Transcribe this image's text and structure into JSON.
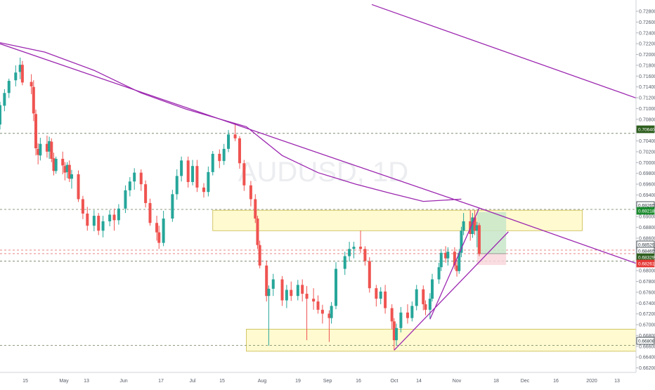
{
  "symbol_watermark": "AUDUSD, 1D",
  "colors": {
    "background": "#ffffff",
    "up_candle": "#26a69a",
    "down_candle": "#ef5350",
    "trendline": "#9c27b0",
    "zone_fill": "#fff9c4",
    "zone_stroke": "#c9b94a",
    "level_line": "#6b7d5a",
    "profit_fill": "#c8e6c9",
    "loss_fill": "#f8d7da",
    "price_tag_green": "#1b8a2e",
    "price_tag_dark_green": "#2e5e1e",
    "price_tag_red": "#e53935",
    "price_tag_bordered": "#263238"
  },
  "x_axis_labels": [
    "15",
    "May",
    "13",
    "Jun",
    "17",
    "Jul",
    "15",
    "Aug",
    "19",
    "Sep",
    "16",
    "Oct",
    "14",
    "Nov",
    "18",
    "Dec",
    "16",
    "2020",
    "13"
  ],
  "y_axis_labels": [
    "0.72800",
    "0.72600",
    "0.72400",
    "0.72200",
    "0.72000",
    "0.71800",
    "0.71600",
    "0.71400",
    "0.71200",
    "0.71000",
    "0.70800",
    "0.70600",
    "0.70400",
    "0.70200",
    "0.70000",
    "0.69800",
    "0.69600",
    "0.69400",
    "0.69200",
    "0.69000",
    "0.68800",
    "0.68600",
    "0.68400",
    "0.68200",
    "0.68000",
    "0.67800",
    "0.67600",
    "0.67400",
    "0.67200",
    "0.67000",
    "0.66800",
    "0.66600",
    "0.66400",
    "0.66200"
  ],
  "price_tags": [
    {
      "label": "0.70640",
      "style": "dark-green"
    },
    {
      "label": "0.69265",
      "style": "bordered"
    },
    {
      "label": "0.69218",
      "style": "green"
    },
    {
      "label": "0.68529",
      "style": "bordered"
    },
    {
      "label": "0.68465",
      "style": "bordered"
    },
    {
      "label": "0.68329",
      "style": "dark-green"
    },
    {
      "label": "0.68261",
      "style": "red"
    },
    {
      "label": "0.66808",
      "style": "bordered"
    }
  ],
  "chart_data": {
    "type": "candlestick",
    "symbol": "AUDUSD",
    "timeframe": "1D",
    "ylim": [
      0.6619,
      0.7295
    ],
    "x_range_days": [
      "2019-04-08",
      "2020-01-17"
    ],
    "support_resistance_levels": [
      0.7064,
      0.69265,
      0.68529,
      0.68465,
      0.68329,
      0.66808
    ],
    "zones": [
      {
        "name": "resistance zone",
        "from": "2019-07-12",
        "to": "2019-12-24",
        "top": 0.6925,
        "bottom": 0.6888
      },
      {
        "name": "support zone",
        "from": "2019-07-27",
        "to": "2020-01-17",
        "top": 0.671,
        "bottom": 0.667
      }
    ],
    "trade_position": {
      "from": "2019-11-07",
      "to": "2019-11-20",
      "entry": 0.68465,
      "target": 0.69218,
      "stop": 0.68261
    },
    "trendlines": [
      {
        "name": "long-term downtrend",
        "from": [
          "2019-04-08",
          0.7226
        ],
        "to": [
          "2019-11-08",
          0.6929
        ]
      },
      {
        "name": "extended downtrend",
        "from": [
          "2019-11-08",
          0.6929
        ],
        "to": [
          "2020-01-17",
          0.6829
        ]
      },
      {
        "name": "ascending trendline",
        "from": [
          "2019-10-01",
          0.6672
        ],
        "to": [
          "2019-11-21",
          0.6886
        ]
      },
      {
        "name": "steep trendline",
        "from": [
          "2019-10-17",
          0.6728
        ],
        "to": [
          "2019-11-08",
          0.6929
        ]
      },
      {
        "name": "upper trendline",
        "from": [
          "2019-09-21",
          0.7297
        ],
        "to": [
          "2020-01-17",
          0.7128
        ]
      }
    ],
    "moving_average": [
      [
        "2019-04-08",
        0.7228
      ],
      [
        "2019-04-28",
        0.7211
      ],
      [
        "2019-05-20",
        0.7178
      ],
      [
        "2019-06-10",
        0.7137
      ],
      [
        "2019-06-30",
        0.7108
      ],
      [
        "2019-07-10",
        0.7096
      ],
      [
        "2019-07-27",
        0.7076
      ],
      [
        "2019-08-12",
        0.7024
      ],
      [
        "2019-08-28",
        0.6993
      ],
      [
        "2019-09-14",
        0.6972
      ],
      [
        "2019-09-29",
        0.6956
      ],
      [
        "2019-10-14",
        0.6941
      ],
      [
        "2019-10-31",
        0.6945
      ]
    ],
    "candles": [
      [
        "2019-04-08",
        0.708,
        0.7121,
        0.7071,
        0.7115
      ],
      [
        "2019-04-10",
        0.7114,
        0.7144,
        0.7104,
        0.7137
      ],
      [
        "2019-04-12",
        0.7137,
        0.7163,
        0.7128,
        0.7159
      ],
      [
        "2019-04-15",
        0.716,
        0.7187,
        0.7149,
        0.7174
      ],
      [
        "2019-04-17",
        0.7175,
        0.7201,
        0.7162,
        0.7188
      ],
      [
        "2019-04-18",
        0.7188,
        0.7195,
        0.7151,
        0.7156
      ],
      [
        "2019-04-22",
        0.7157,
        0.7171,
        0.7135,
        0.7149
      ],
      [
        "2019-04-23",
        0.7148,
        0.716,
        0.7086,
        0.71
      ],
      [
        "2019-04-24",
        0.7099,
        0.7107,
        0.7024,
        0.7037
      ],
      [
        "2019-04-25",
        0.7036,
        0.7046,
        0.7008,
        0.7025
      ],
      [
        "2019-04-26",
        0.7024,
        0.7056,
        0.7015,
        0.7045
      ],
      [
        "2019-04-29",
        0.7045,
        0.706,
        0.702,
        0.7031
      ],
      [
        "2019-04-30",
        0.7031,
        0.7058,
        0.7018,
        0.705
      ],
      [
        "2019-05-01",
        0.7049,
        0.7055,
        0.7012,
        0.7018
      ],
      [
        "2019-05-02",
        0.7019,
        0.7029,
        0.6988,
        0.6996
      ],
      [
        "2019-05-03",
        0.6996,
        0.7022,
        0.6991,
        0.7018
      ],
      [
        "2019-05-06",
        0.7018,
        0.7031,
        0.699,
        0.7006
      ],
      [
        "2019-05-07",
        0.7005,
        0.7012,
        0.6979,
        0.6993
      ],
      [
        "2019-05-08",
        0.6994,
        0.7012,
        0.6983,
        0.7007
      ],
      [
        "2019-05-09",
        0.7007,
        0.7015,
        0.6976,
        0.6982
      ],
      [
        "2019-05-10",
        0.6982,
        0.6998,
        0.6964,
        0.699
      ],
      [
        "2019-05-13",
        0.699,
        0.6997,
        0.694,
        0.6945
      ],
      [
        "2019-05-15",
        0.6945,
        0.6951,
        0.6909,
        0.6919
      ],
      [
        "2019-05-17",
        0.6919,
        0.6931,
        0.6888,
        0.6897
      ],
      [
        "2019-05-20",
        0.6897,
        0.6925,
        0.6887,
        0.6915
      ],
      [
        "2019-05-22",
        0.6915,
        0.692,
        0.688,
        0.6888
      ],
      [
        "2019-05-24",
        0.6888,
        0.6915,
        0.6876,
        0.6905
      ],
      [
        "2019-05-27",
        0.6905,
        0.6925,
        0.6896,
        0.6917
      ],
      [
        "2019-05-29",
        0.6917,
        0.6928,
        0.6888,
        0.6907
      ],
      [
        "2019-05-31",
        0.6907,
        0.6936,
        0.6899,
        0.6928
      ],
      [
        "2019-06-03",
        0.6928,
        0.697,
        0.692,
        0.6961
      ],
      [
        "2019-06-05",
        0.6961,
        0.6985,
        0.695,
        0.6977
      ],
      [
        "2019-06-07",
        0.6977,
        0.7001,
        0.6962,
        0.6993
      ],
      [
        "2019-06-10",
        0.6993,
        0.6999,
        0.696,
        0.6972
      ],
      [
        "2019-06-12",
        0.6972,
        0.6979,
        0.693,
        0.6938
      ],
      [
        "2019-06-14",
        0.6938,
        0.6946,
        0.6897,
        0.6902
      ],
      [
        "2019-06-17",
        0.6902,
        0.6915,
        0.687,
        0.6885
      ],
      [
        "2019-06-18",
        0.6885,
        0.6897,
        0.6855,
        0.6866
      ],
      [
        "2019-06-20",
        0.6866,
        0.6924,
        0.686,
        0.691
      ],
      [
        "2019-06-24",
        0.691,
        0.6962,
        0.6904,
        0.6954
      ],
      [
        "2019-06-26",
        0.6954,
        0.6999,
        0.6944,
        0.6987
      ],
      [
        "2019-06-28",
        0.6987,
        0.7022,
        0.6977,
        0.7015
      ],
      [
        "2019-07-01",
        0.7015,
        0.7022,
        0.6966,
        0.6976
      ],
      [
        "2019-07-03",
        0.6976,
        0.7016,
        0.697,
        0.7005
      ],
      [
        "2019-07-05",
        0.7005,
        0.7016,
        0.6958,
        0.6966
      ],
      [
        "2019-07-08",
        0.6966,
        0.6974,
        0.6948,
        0.6958
      ],
      [
        "2019-07-10",
        0.6958,
        0.7004,
        0.695,
        0.6994
      ],
      [
        "2019-07-12",
        0.6994,
        0.7032,
        0.6988,
        0.7027
      ],
      [
        "2019-07-15",
        0.7027,
        0.7035,
        0.7001,
        0.7014
      ],
      [
        "2019-07-17",
        0.7014,
        0.7045,
        0.7007,
        0.7036
      ],
      [
        "2019-07-19",
        0.7036,
        0.707,
        0.703,
        0.7062
      ],
      [
        "2019-07-22",
        0.7062,
        0.7082,
        0.705,
        0.7055
      ],
      [
        "2019-07-24",
        0.7055,
        0.7059,
        0.7,
        0.701
      ],
      [
        "2019-07-26",
        0.701,
        0.7016,
        0.696,
        0.697
      ],
      [
        "2019-07-29",
        0.697,
        0.6978,
        0.6932,
        0.6945
      ],
      [
        "2019-07-31",
        0.6945,
        0.6954,
        0.6902,
        0.691
      ],
      [
        "2019-08-01",
        0.691,
        0.6915,
        0.6855,
        0.6862
      ],
      [
        "2019-08-02",
        0.6862,
        0.687,
        0.682,
        0.6825
      ],
      [
        "2019-08-05",
        0.6825,
        0.6834,
        0.676,
        0.677
      ],
      [
        "2019-08-06",
        0.677,
        0.6789,
        0.668,
        0.6783
      ],
      [
        "2019-08-08",
        0.6783,
        0.681,
        0.677,
        0.68
      ],
      [
        "2019-08-12",
        0.68,
        0.6806,
        0.6752,
        0.6762
      ],
      [
        "2019-08-14",
        0.6762,
        0.679,
        0.6748,
        0.6781
      ],
      [
        "2019-08-16",
        0.6781,
        0.6796,
        0.6761,
        0.677
      ],
      [
        "2019-08-19",
        0.677,
        0.6799,
        0.6762,
        0.679
      ],
      [
        "2019-08-21",
        0.679,
        0.68,
        0.676,
        0.6774
      ],
      [
        "2019-08-23",
        0.6774,
        0.6788,
        0.669,
        0.6765
      ],
      [
        "2019-08-26",
        0.6765,
        0.6784,
        0.6745,
        0.676
      ],
      [
        "2019-08-28",
        0.676,
        0.6771,
        0.6738,
        0.6745
      ],
      [
        "2019-08-30",
        0.6745,
        0.6754,
        0.672,
        0.6738
      ],
      [
        "2019-09-02",
        0.6738,
        0.6744,
        0.6687,
        0.673
      ],
      [
        "2019-09-03",
        0.673,
        0.6759,
        0.672,
        0.6752
      ],
      [
        "2019-09-05",
        0.6752,
        0.6831,
        0.6746,
        0.6819
      ],
      [
        "2019-09-09",
        0.6819,
        0.685,
        0.6808,
        0.6842
      ],
      [
        "2019-09-11",
        0.6842,
        0.6868,
        0.6832,
        0.6855
      ],
      [
        "2019-09-13",
        0.6855,
        0.6868,
        0.6838,
        0.6859
      ],
      [
        "2019-09-16",
        0.6859,
        0.6888,
        0.6848,
        0.6855
      ],
      [
        "2019-09-18",
        0.6855,
        0.686,
        0.6825,
        0.6833
      ],
      [
        "2019-09-20",
        0.6833,
        0.684,
        0.6776,
        0.6784
      ],
      [
        "2019-09-23",
        0.6784,
        0.679,
        0.6751,
        0.6765
      ],
      [
        "2019-09-25",
        0.6765,
        0.6786,
        0.6755,
        0.6778
      ],
      [
        "2019-09-27",
        0.6778,
        0.679,
        0.6738,
        0.6748
      ],
      [
        "2019-09-30",
        0.6748,
        0.6755,
        0.671,
        0.6724
      ],
      [
        "2019-10-01",
        0.6724,
        0.673,
        0.6672,
        0.669
      ],
      [
        "2019-10-02",
        0.669,
        0.672,
        0.668,
        0.6712
      ],
      [
        "2019-10-04",
        0.6712,
        0.675,
        0.6704,
        0.674
      ],
      [
        "2019-10-07",
        0.674,
        0.6755,
        0.672,
        0.673
      ],
      [
        "2019-10-09",
        0.673,
        0.676,
        0.6724,
        0.6752
      ],
      [
        "2019-10-11",
        0.6752,
        0.679,
        0.6744,
        0.6782
      ],
      [
        "2019-10-14",
        0.6782,
        0.6789,
        0.6744,
        0.6755
      ],
      [
        "2019-10-15",
        0.6755,
        0.6762,
        0.6735,
        0.6745
      ],
      [
        "2019-10-17",
        0.6745,
        0.6775,
        0.6728,
        0.6765
      ],
      [
        "2019-10-18",
        0.6765,
        0.681,
        0.676,
        0.68
      ],
      [
        "2019-10-21",
        0.68,
        0.683,
        0.6792,
        0.6822
      ],
      [
        "2019-10-22",
        0.6822,
        0.6855,
        0.6815,
        0.6848
      ],
      [
        "2019-10-24",
        0.6848,
        0.686,
        0.683,
        0.6838
      ],
      [
        "2019-10-25",
        0.6838,
        0.6858,
        0.6825,
        0.685
      ],
      [
        "2019-10-28",
        0.685,
        0.6858,
        0.6818,
        0.6825
      ],
      [
        "2019-10-29",
        0.6825,
        0.6835,
        0.6805,
        0.6815
      ],
      [
        "2019-10-30",
        0.6815,
        0.6855,
        0.681,
        0.6848
      ],
      [
        "2019-10-31",
        0.6848,
        0.6895,
        0.684,
        0.6888
      ],
      [
        "2019-11-01",
        0.6888,
        0.692,
        0.688,
        0.6905
      ],
      [
        "2019-11-04",
        0.6905,
        0.6925,
        0.687,
        0.6882
      ],
      [
        "2019-11-05",
        0.6882,
        0.692,
        0.6875,
        0.6912
      ],
      [
        "2019-11-06",
        0.6912,
        0.6925,
        0.688,
        0.6888
      ],
      [
        "2019-11-07",
        0.6888,
        0.6904,
        0.6858,
        0.6898
      ],
      [
        "2019-11-08",
        0.6898,
        0.6902,
        0.6842,
        0.6846
      ]
    ]
  }
}
